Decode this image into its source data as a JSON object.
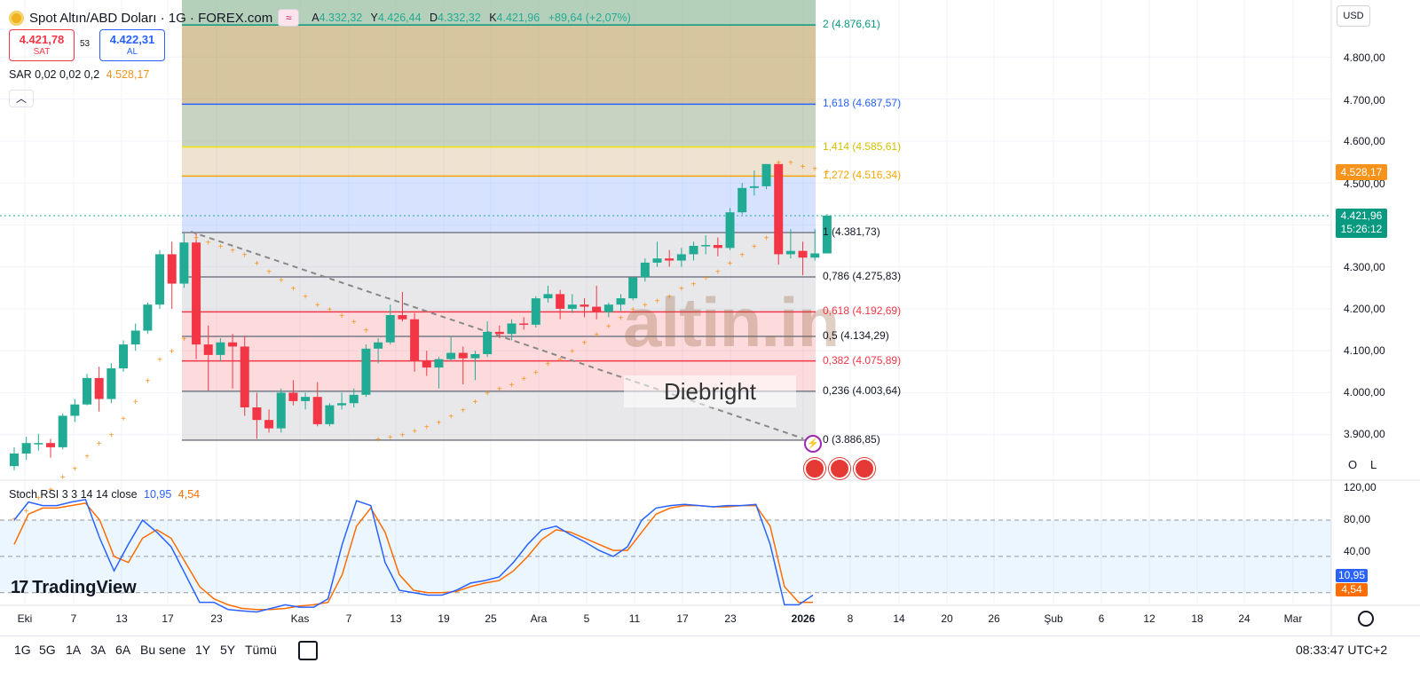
{
  "header": {
    "title": "Spot Altın/ABD Doları · 1G · FOREX.com",
    "ohlc": [
      {
        "label": "A",
        "value": "4.332,32"
      },
      {
        "label": "Y",
        "value": "4.426,44"
      },
      {
        "label": "D",
        "value": "4.332,32"
      },
      {
        "label": "K",
        "value": "4.421,96"
      }
    ],
    "change": "+89,64 (+2,07%)",
    "sell_price": "4.421,78",
    "sell_label": "SAT",
    "spread": "53",
    "buy_price": "4.422,31",
    "buy_label": "AL",
    "sar_label": "SAR 0,02 0,02 0,2",
    "sar_value": "4.528,17",
    "currency": "USD"
  },
  "colors": {
    "up": "#22ab94",
    "down": "#f23645",
    "sar": "#f7931a",
    "stoch_k": "#2962ff",
    "stoch_d": "#ff6d00",
    "fib_1618": "#2962ff",
    "fib_1272": "#f7a600"
  },
  "price_axis": [
    "4.800,00",
    "4.700,00",
    "4.600,00",
    "4.500,00",
    "4.300,00",
    "4.200,00",
    "4.100,00",
    "4.000,00",
    "3.900,00"
  ],
  "price_tags": {
    "sar": "4.528,17",
    "last": "4.421,96",
    "countdown": "15:26:12"
  },
  "fib_levels": [
    {
      "label": "2 (4.876,61)",
      "price": 4876.61,
      "color": "#089981"
    },
    {
      "label": "1,618 (4.687,57)",
      "price": 4687.57,
      "color": "#2962ff"
    },
    {
      "label": "1,414 (4.585,61)",
      "price": 4585.61,
      "color": "#f2e600"
    },
    {
      "label": "1,272 (4.516,34)",
      "price": 4516.34,
      "color": "#f7a600"
    },
    {
      "label": "1 (4.381,73)",
      "price": 4381.73,
      "color": "#787b86"
    },
    {
      "label": "0,786 (4.275,83)",
      "price": 4275.83,
      "color": "#787b86"
    },
    {
      "label": "0,618 (4.192,69)",
      "price": 4192.69,
      "color": "#f23645"
    },
    {
      "label": "0,5 (4.134,29)",
      "price": 4134.29,
      "color": "#787b86"
    },
    {
      "label": "0,382 (4.075,89)",
      "price": 4075.89,
      "color": "#f23645"
    },
    {
      "label": "0,236 (4.003,64)",
      "price": 4003.64,
      "color": "#787b86"
    },
    {
      "label": "0 (3.886,85)",
      "price": 3886.85,
      "color": "#787b86"
    }
  ],
  "stoch": {
    "legend": "Stoch RSI 3 3 14 14 close",
    "k_value": "10,95",
    "d_value": "4,54",
    "axis": [
      "120,00",
      "80,00",
      "40,00"
    ]
  },
  "time_axis": [
    "Eki",
    "7",
    "13",
    "17",
    "23",
    "Kas",
    "7",
    "13",
    "19",
    "25",
    "Ara",
    "5",
    "11",
    "17",
    "23",
    "2026",
    "8",
    "14",
    "20",
    "26",
    "Şub",
    "6",
    "12",
    "18",
    "24",
    "Mar"
  ],
  "ranges": [
    "1G",
    "5G",
    "1A",
    "3A",
    "6A",
    "Bu sene",
    "1Y",
    "5Y",
    "Tümü"
  ],
  "clock": "08:33:47 UTC+2",
  "watermark": {
    "brand": "altin.in",
    "author": "Diebright"
  },
  "logo": "TradingView",
  "scale_buttons": [
    "O",
    "L"
  ],
  "chart_data": {
    "type": "candlestick",
    "title": "Spot Altın/ABD Doları · 1G · FOREX.com",
    "xlabel": "",
    "ylabel": "",
    "ylim": [
      3840,
      4880
    ],
    "candles": [
      {
        "o": 3825,
        "h": 3870,
        "l": 3815,
        "c": 3855
      },
      {
        "o": 3855,
        "h": 3895,
        "l": 3840,
        "c": 3880
      },
      {
        "o": 3880,
        "h": 3902,
        "l": 3862,
        "c": 3880
      },
      {
        "o": 3880,
        "h": 3890,
        "l": 3845,
        "c": 3870
      },
      {
        "o": 3870,
        "h": 3950,
        "l": 3865,
        "c": 3945
      },
      {
        "o": 3945,
        "h": 3985,
        "l": 3930,
        "c": 3972
      },
      {
        "o": 3972,
        "h": 4045,
        "l": 3970,
        "c": 4035
      },
      {
        "o": 4035,
        "h": 4062,
        "l": 3955,
        "c": 3985
      },
      {
        "o": 3985,
        "h": 4070,
        "l": 3975,
        "c": 4058
      },
      {
        "o": 4058,
        "h": 4125,
        "l": 4050,
        "c": 4115
      },
      {
        "o": 4115,
        "h": 4165,
        "l": 4100,
        "c": 4148
      },
      {
        "o": 4148,
        "h": 4215,
        "l": 4140,
        "c": 4210
      },
      {
        "o": 4210,
        "h": 4340,
        "l": 4200,
        "c": 4330
      },
      {
        "o": 4330,
        "h": 4360,
        "l": 4200,
        "c": 4260
      },
      {
        "o": 4260,
        "h": 4380,
        "l": 4250,
        "c": 4358
      },
      {
        "o": 4358,
        "h": 4380,
        "l": 4080,
        "c": 4115
      },
      {
        "o": 4115,
        "h": 4160,
        "l": 4005,
        "c": 4090
      },
      {
        "o": 4090,
        "h": 4130,
        "l": 4075,
        "c": 4120
      },
      {
        "o": 4120,
        "h": 4140,
        "l": 4010,
        "c": 4110
      },
      {
        "o": 4110,
        "h": 4135,
        "l": 3945,
        "c": 3965
      },
      {
        "o": 3965,
        "h": 4000,
        "l": 3890,
        "c": 3935
      },
      {
        "o": 3935,
        "h": 3960,
        "l": 3905,
        "c": 3915
      },
      {
        "o": 3915,
        "h": 4010,
        "l": 3905,
        "c": 4000
      },
      {
        "o": 4000,
        "h": 4030,
        "l": 3970,
        "c": 3980
      },
      {
        "o": 3980,
        "h": 4000,
        "l": 3960,
        "c": 3990
      },
      {
        "o": 3990,
        "h": 4025,
        "l": 3920,
        "c": 3925
      },
      {
        "o": 3925,
        "h": 3975,
        "l": 3920,
        "c": 3970
      },
      {
        "o": 3970,
        "h": 4000,
        "l": 3960,
        "c": 3975
      },
      {
        "o": 3975,
        "h": 4010,
        "l": 3965,
        "c": 3995
      },
      {
        "o": 3995,
        "h": 4115,
        "l": 3990,
        "c": 4105
      },
      {
        "o": 4105,
        "h": 4130,
        "l": 4070,
        "c": 4120
      },
      {
        "o": 4120,
        "h": 4210,
        "l": 4115,
        "c": 4185
      },
      {
        "o": 4185,
        "h": 4240,
        "l": 4170,
        "c": 4175
      },
      {
        "o": 4175,
        "h": 4190,
        "l": 4050,
        "c": 4075
      },
      {
        "o": 4075,
        "h": 4100,
        "l": 4040,
        "c": 4060
      },
      {
        "o": 4060,
        "h": 4085,
        "l": 4010,
        "c": 4080
      },
      {
        "o": 4080,
        "h": 4135,
        "l": 4075,
        "c": 4095
      },
      {
        "o": 4095,
        "h": 4110,
        "l": 4020,
        "c": 4082
      },
      {
        "o": 4082,
        "h": 4100,
        "l": 4030,
        "c": 4092
      },
      {
        "o": 4092,
        "h": 4170,
        "l": 4085,
        "c": 4145
      },
      {
        "o": 4145,
        "h": 4160,
        "l": 4130,
        "c": 4140
      },
      {
        "o": 4140,
        "h": 4175,
        "l": 4125,
        "c": 4165
      },
      {
        "o": 4165,
        "h": 4180,
        "l": 4150,
        "c": 4162
      },
      {
        "o": 4162,
        "h": 4230,
        "l": 4155,
        "c": 4225
      },
      {
        "o": 4225,
        "h": 4255,
        "l": 4215,
        "c": 4235
      },
      {
        "o": 4235,
        "h": 4245,
        "l": 4175,
        "c": 4200
      },
      {
        "o": 4200,
        "h": 4235,
        "l": 4190,
        "c": 4210
      },
      {
        "o": 4210,
        "h": 4225,
        "l": 4180,
        "c": 4205
      },
      {
        "o": 4205,
        "h": 4255,
        "l": 4175,
        "c": 4192
      },
      {
        "o": 4192,
        "h": 4215,
        "l": 4180,
        "c": 4210
      },
      {
        "o": 4210,
        "h": 4235,
        "l": 4195,
        "c": 4225
      },
      {
        "o": 4225,
        "h": 4270,
        "l": 4220,
        "c": 4275
      },
      {
        "o": 4275,
        "h": 4320,
        "l": 4265,
        "c": 4310
      },
      {
        "o": 4310,
        "h": 4360,
        "l": 4300,
        "c": 4320
      },
      {
        "o": 4320,
        "h": 4340,
        "l": 4300,
        "c": 4315
      },
      {
        "o": 4315,
        "h": 4345,
        "l": 4300,
        "c": 4330
      },
      {
        "o": 4330,
        "h": 4360,
        "l": 4315,
        "c": 4350
      },
      {
        "o": 4350,
        "h": 4375,
        "l": 4330,
        "c": 4352
      },
      {
        "o": 4352,
        "h": 4370,
        "l": 4325,
        "c": 4345
      },
      {
        "o": 4345,
        "h": 4440,
        "l": 4340,
        "c": 4430
      },
      {
        "o": 4430,
        "h": 4500,
        "l": 4425,
        "c": 4488
      },
      {
        "o": 4488,
        "h": 4530,
        "l": 4470,
        "c": 4492
      },
      {
        "o": 4492,
        "h": 4545,
        "l": 4485,
        "c": 4545
      },
      {
        "o": 4545,
        "h": 4550,
        "l": 4305,
        "c": 4330
      },
      {
        "o": 4330,
        "h": 4390,
        "l": 4320,
        "c": 4338
      },
      {
        "o": 4338,
        "h": 4360,
        "l": 4280,
        "c": 4322
      },
      {
        "o": 4322,
        "h": 4390,
        "l": 4315,
        "c": 4332
      },
      {
        "o": 4332,
        "h": 4426,
        "l": 4332,
        "c": 4422
      }
    ],
    "sar": [
      3700,
      3720,
      3750,
      3770,
      3800,
      3820,
      3850,
      3880,
      3900,
      3940,
      3980,
      4030,
      4080,
      4100,
      4130,
      4370,
      4360,
      4350,
      4340,
      4330,
      4310,
      4290,
      4270,
      4250,
      4230,
      4210,
      4200,
      4185,
      4170,
      4150,
      3890,
      3895,
      3900,
      3910,
      3920,
      3930,
      3945,
      3960,
      3980,
      4000,
      4010,
      4020,
      4035,
      4050,
      4070,
      4080,
      4100,
      4120,
      4140,
      4160,
      4180,
      4200,
      4210,
      4220,
      4230,
      4250,
      4260,
      4275,
      4290,
      4310,
      4330,
      4350,
      4370,
      4550,
      4550,
      4540,
      4535,
      4528
    ],
    "stoch_k": [
      80,
      95,
      92,
      92,
      95,
      97,
      65,
      38,
      60,
      80,
      70,
      58,
      35,
      12,
      12,
      6,
      5,
      4,
      7,
      10,
      8,
      8,
      15,
      60,
      96,
      92,
      45,
      22,
      20,
      18,
      18,
      22,
      28,
      30,
      33,
      45,
      60,
      72,
      75,
      68,
      62,
      55,
      50,
      58,
      80,
      90,
      92,
      93,
      92,
      91,
      92,
      92,
      93,
      60,
      10,
      10,
      18
    ],
    "stoch_d": [
      60,
      85,
      90,
      90,
      92,
      94,
      80,
      50,
      45,
      65,
      72,
      65,
      45,
      25,
      15,
      10,
      7,
      6,
      6,
      7,
      9,
      10,
      12,
      35,
      75,
      90,
      70,
      35,
      22,
      20,
      20,
      21,
      25,
      28,
      30,
      38,
      50,
      64,
      72,
      70,
      65,
      60,
      55,
      55,
      70,
      85,
      90,
      92,
      92,
      91,
      91,
      92,
      92,
      75,
      25,
      12,
      12
    ]
  }
}
